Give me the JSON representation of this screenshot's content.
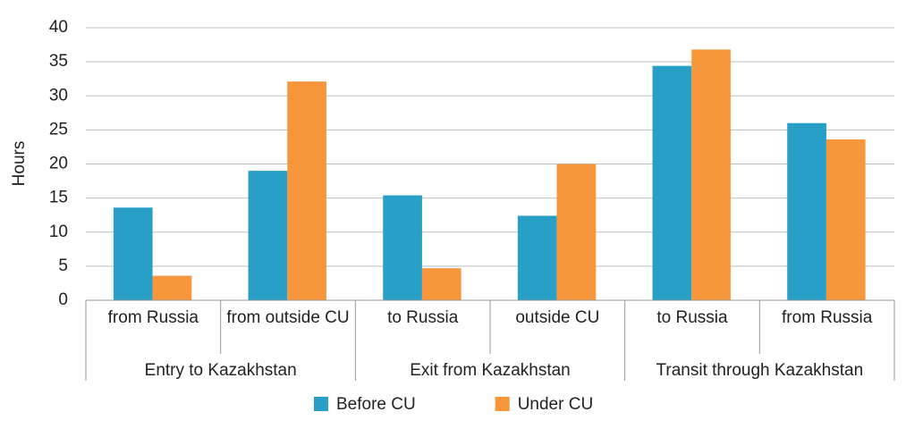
{
  "chart_data": {
    "type": "bar",
    "y_label": "Hours",
    "groups": [
      {
        "name": "Entry to Kazakhstan",
        "categories": [
          "from Russia",
          "from outside CU"
        ]
      },
      {
        "name": "Exit from Kazakhstan",
        "categories": [
          "to Russia",
          "outside CU"
        ]
      },
      {
        "name": "Transit through Kazakhstan",
        "categories": [
          "to Russia",
          "from Russia"
        ]
      }
    ],
    "series": [
      {
        "name": "Before CU",
        "color": "#279fc7",
        "values": [
          13.6,
          19,
          15.4,
          12.4,
          34.4,
          26
        ]
      },
      {
        "name": "Under CU",
        "color": "#f7963a",
        "values": [
          3.6,
          32.1,
          4.7,
          20,
          36.8,
          23.6
        ]
      }
    ],
    "ylim": [
      0,
      40
    ],
    "yticks": [
      0,
      5,
      10,
      15,
      20,
      25,
      30,
      35,
      40
    ],
    "grid": true,
    "legend": "bottom"
  }
}
